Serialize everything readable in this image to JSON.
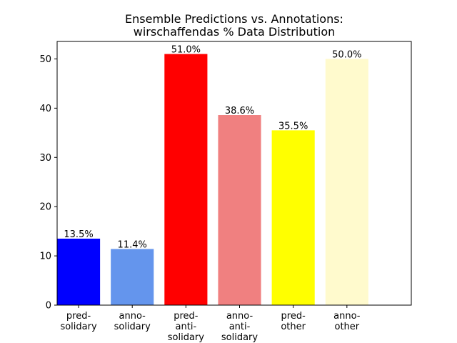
{
  "chart_data": {
    "type": "bar",
    "title": [
      "Ensemble Predictions vs. Annotations:",
      "wirschaffendas % Data Distribution"
    ],
    "xlabel": "",
    "ylabel": "",
    "ylim": [
      0,
      53.55
    ],
    "yticks": [
      0,
      10,
      20,
      30,
      40,
      50
    ],
    "grid": false,
    "categories": [
      [
        "pred-",
        "solidary"
      ],
      [
        "anno-",
        "solidary"
      ],
      [
        "pred-",
        "anti-",
        "solidary"
      ],
      [
        "anno-",
        "anti-",
        "solidary"
      ],
      [
        "pred-",
        "other"
      ],
      [
        "anno-",
        "other"
      ]
    ],
    "values": [
      13.5,
      11.4,
      51.0,
      38.6,
      35.5,
      50.0
    ],
    "labels": [
      "13.5%",
      "11.4%",
      "51.0%",
      "38.6%",
      "35.5%",
      "50.0%"
    ],
    "colors": [
      "#0000ff",
      "#6495ed",
      "#ff0000",
      "#f08080",
      "#ffff00",
      "#fffacd"
    ]
  }
}
